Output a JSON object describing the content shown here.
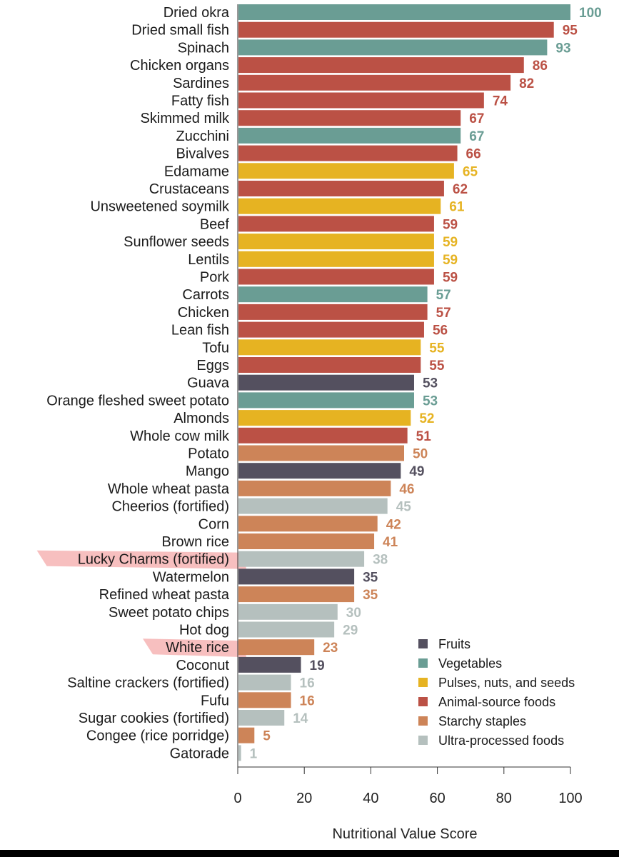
{
  "chart_data": {
    "type": "bar",
    "orientation": "horizontal",
    "xlabel": "Nutritional Value Score",
    "xlim": [
      0,
      100
    ],
    "xticks": [
      0,
      20,
      40,
      60,
      80,
      100
    ],
    "grid": false,
    "legend_position": "bottom-right",
    "groups": [
      {
        "key": "fruits",
        "name": "Fruits",
        "color": "#54505f"
      },
      {
        "key": "vegetables",
        "name": "Vegetables",
        "color": "#6a9d94"
      },
      {
        "key": "pulses",
        "name": "Pulses, nuts, and seeds",
        "color": "#e6b322"
      },
      {
        "key": "animal",
        "name": "Animal-source foods",
        "color": "#bb5145"
      },
      {
        "key": "starchy",
        "name": "Starchy staples",
        "color": "#cd8458"
      },
      {
        "key": "ultra",
        "name": "Ultra-processed foods",
        "color": "#b5c0be"
      }
    ],
    "bars": [
      {
        "label": "Dried okra",
        "value": 100,
        "group": "vegetables"
      },
      {
        "label": "Dried small fish",
        "value": 95,
        "group": "animal"
      },
      {
        "label": "Spinach",
        "value": 93,
        "group": "vegetables"
      },
      {
        "label": "Chicken organs",
        "value": 86,
        "group": "animal"
      },
      {
        "label": "Sardines",
        "value": 82,
        "group": "animal"
      },
      {
        "label": "Fatty fish",
        "value": 74,
        "group": "animal"
      },
      {
        "label": "Skimmed milk",
        "value": 67,
        "group": "animal"
      },
      {
        "label": "Zucchini",
        "value": 67,
        "group": "vegetables"
      },
      {
        "label": "Bivalves",
        "value": 66,
        "group": "animal"
      },
      {
        "label": "Edamame",
        "value": 65,
        "group": "pulses"
      },
      {
        "label": "Crustaceans",
        "value": 62,
        "group": "animal"
      },
      {
        "label": "Unsweetened soymilk",
        "value": 61,
        "group": "pulses"
      },
      {
        "label": "Beef",
        "value": 59,
        "group": "animal"
      },
      {
        "label": "Sunflower seeds",
        "value": 59,
        "group": "pulses"
      },
      {
        "label": "Lentils",
        "value": 59,
        "group": "pulses"
      },
      {
        "label": "Pork",
        "value": 59,
        "group": "animal"
      },
      {
        "label": "Carrots",
        "value": 57,
        "group": "vegetables"
      },
      {
        "label": "Chicken",
        "value": 57,
        "group": "animal"
      },
      {
        "label": "Lean fish",
        "value": 56,
        "group": "animal"
      },
      {
        "label": "Tofu",
        "value": 55,
        "group": "pulses"
      },
      {
        "label": "Eggs",
        "value": 55,
        "group": "animal"
      },
      {
        "label": "Guava",
        "value": 53,
        "group": "fruits"
      },
      {
        "label": "Orange fleshed sweet potato",
        "value": 53,
        "group": "vegetables"
      },
      {
        "label": "Almonds",
        "value": 52,
        "group": "pulses"
      },
      {
        "label": "Whole cow milk",
        "value": 51,
        "group": "animal"
      },
      {
        "label": "Potato",
        "value": 50,
        "group": "starchy"
      },
      {
        "label": "Mango",
        "value": 49,
        "group": "fruits"
      },
      {
        "label": "Whole wheat pasta",
        "value": 46,
        "group": "starchy"
      },
      {
        "label": "Cheerios (fortified)",
        "value": 45,
        "group": "ultra"
      },
      {
        "label": "Corn",
        "value": 42,
        "group": "starchy"
      },
      {
        "label": "Brown rice",
        "value": 41,
        "group": "starchy"
      },
      {
        "label": "Lucky Charms (fortified)",
        "value": 38,
        "group": "ultra",
        "highlighted": true
      },
      {
        "label": "Watermelon",
        "value": 35,
        "group": "fruits"
      },
      {
        "label": "Refined wheat pasta",
        "value": 35,
        "group": "starchy"
      },
      {
        "label": "Sweet potato chips",
        "value": 30,
        "group": "ultra"
      },
      {
        "label": "Hot dog",
        "value": 29,
        "group": "ultra"
      },
      {
        "label": "White rice",
        "value": 23,
        "group": "starchy",
        "highlighted": true
      },
      {
        "label": "Coconut",
        "value": 19,
        "group": "fruits"
      },
      {
        "label": "Saltine crackers (fortified)",
        "value": 16,
        "group": "ultra"
      },
      {
        "label": "Fufu",
        "value": 16,
        "group": "starchy"
      },
      {
        "label": "Sugar cookies (fortified)",
        "value": 14,
        "group": "ultra"
      },
      {
        "label": "Congee (rice porridge)",
        "value": 5,
        "group": "starchy"
      },
      {
        "label": "Gatorade",
        "value": 1,
        "group": "ultra"
      }
    ],
    "highlight_color": "#f08a8a"
  }
}
